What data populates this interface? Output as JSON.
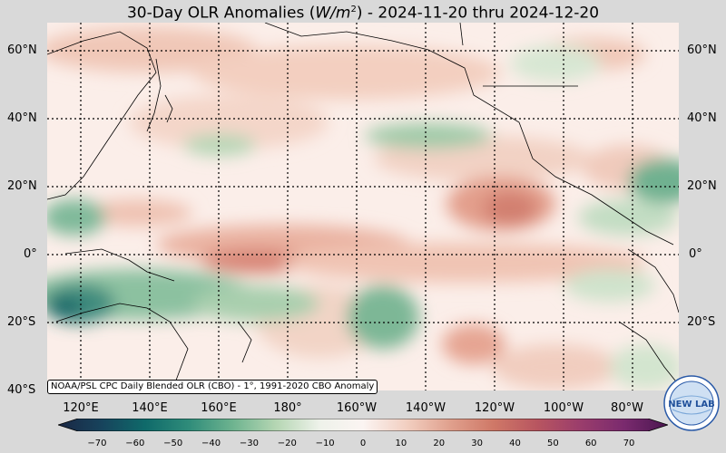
{
  "title": {
    "prefix": "30-Day OLR Anomalies (",
    "unit_base": "W/m",
    "unit_exp": "2",
    "suffix": ") - 2024-11-20 thru 2024-12-20"
  },
  "lat_labels": [
    "60°N",
    "40°N",
    "20°N",
    "0°",
    "20°S",
    "40°S"
  ],
  "lon_labels": [
    "120°E",
    "140°E",
    "160°E",
    "180°",
    "160°W",
    "140°W",
    "120°W",
    "100°W",
    "80°W"
  ],
  "credit": "NOAA/PSL CPC Daily Blended OLR (CBO) - 1°, 1991-2020 CBO Anomaly",
  "colorbar": {
    "ticks": [
      "−70",
      "−60",
      "−50",
      "−40",
      "−30",
      "−20",
      "−10",
      "0",
      "10",
      "20",
      "30",
      "40",
      "50",
      "60",
      "70"
    ],
    "min": -75,
    "max": 75,
    "stops": [
      "#1a2744",
      "#17435c",
      "#0f6a6a",
      "#2f8c7a",
      "#6db38f",
      "#b5d6b3",
      "#eef2ea",
      "#fbf4f2",
      "#f2cfc1",
      "#e0a08d",
      "#cf7867",
      "#b85560",
      "#9a3d6c",
      "#7a2a6e",
      "#4a1650"
    ]
  },
  "logo_text": "NEW LAB",
  "colors": {
    "frame": "#d9d9d9",
    "map_base": "#fbeee9"
  }
}
